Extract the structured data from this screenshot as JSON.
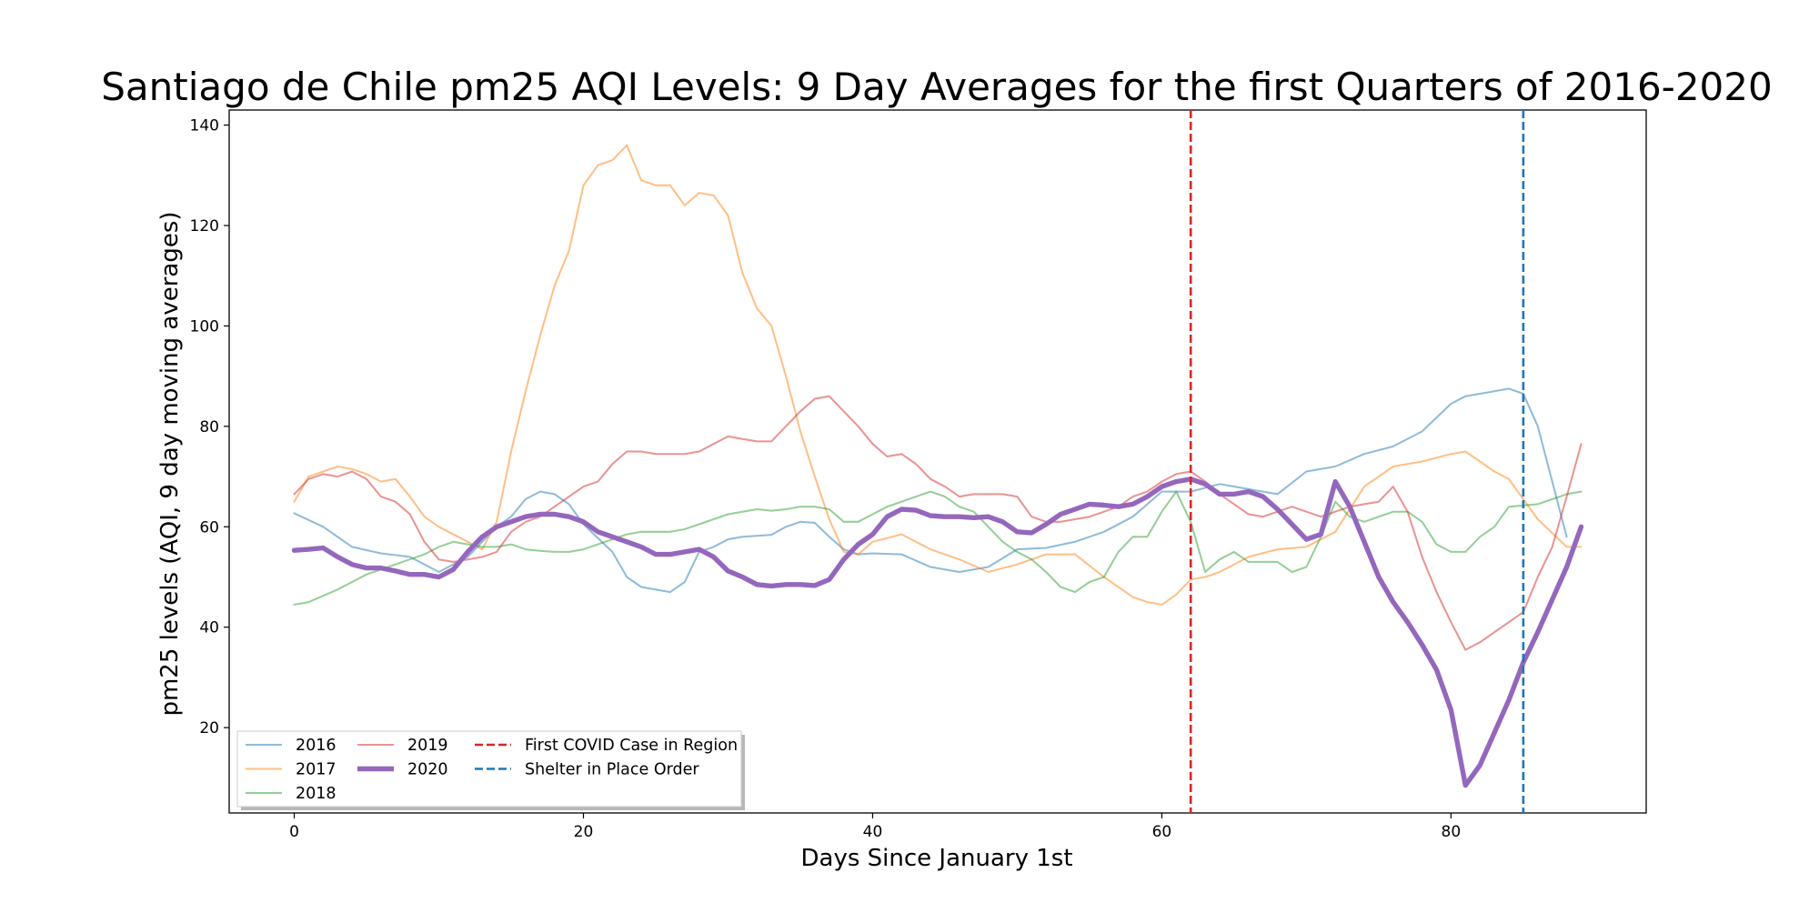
{
  "chart_data": {
    "type": "line",
    "title": "Santiago de Chile pm25 AQI Levels: 9 Day Averages for the first Quarters of 2016-2020",
    "xlabel": "Days Since January 1st",
    "ylabel": "pm25 levels (AQI, 9 day moving averages)",
    "xlim": [
      -4.5,
      93.5
    ],
    "ylim": [
      3,
      143
    ],
    "x_ticks": [
      0,
      20,
      40,
      60,
      80
    ],
    "y_ticks": [
      20,
      40,
      60,
      80,
      100,
      120,
      140
    ],
    "grid": false,
    "legend_position": "lower left",
    "legend_columns": 3,
    "vertical_lines": [
      {
        "label": "First COVID Case in Region",
        "x": 62,
        "color": "#d62728",
        "style": "dashed"
      },
      {
        "label": "Shelter in Place Order",
        "x": 85,
        "color": "#1f77b4",
        "style": "dashed"
      }
    ],
    "series": [
      {
        "name": "2016",
        "color": "#1f77b4",
        "linewidth": 1.5,
        "opacity": 0.5,
        "x": [
          0,
          2,
          4,
          6,
          8,
          10,
          12,
          14,
          15,
          16,
          17,
          18,
          19,
          20,
          22,
          23,
          24,
          26,
          27,
          28,
          29,
          30,
          31,
          32,
          33,
          34,
          35,
          36,
          37,
          38,
          39,
          40,
          42,
          44,
          46,
          48,
          50,
          52,
          54,
          56,
          58,
          60,
          62,
          64,
          66,
          68,
          70,
          72,
          74,
          76,
          78,
          80,
          81,
          82,
          83,
          84,
          85,
          86,
          88
        ],
        "y": [
          62.7,
          60,
          56,
          54.7,
          54,
          51,
          54,
          60,
          62,
          65.5,
          67,
          66.5,
          64.5,
          60.5,
          55,
          50,
          48,
          47,
          49,
          55,
          56,
          57.5,
          58,
          58.2,
          58.4,
          60,
          61,
          60.8,
          58,
          55.5,
          54.5,
          54.7,
          54.5,
          52,
          51,
          52,
          55.5,
          55.8,
          57,
          59,
          62,
          67,
          67,
          68.5,
          67.5,
          66.5,
          71,
          72,
          74.5,
          76,
          79,
          84.5,
          86,
          86.5,
          87,
          87.5,
          86.5,
          80,
          58
        ]
      },
      {
        "name": "2017",
        "color": "#ff7f0e",
        "linewidth": 1.5,
        "opacity": 0.5,
        "x": [
          0,
          1,
          2,
          3,
          4,
          5,
          6,
          7,
          8,
          9,
          10,
          12,
          13,
          14,
          15,
          16,
          17,
          18,
          19,
          20,
          21,
          22,
          23,
          24,
          25,
          26,
          27,
          28,
          29,
          30,
          31,
          32,
          33,
          34,
          35,
          36,
          37,
          38,
          39,
          40,
          42,
          44,
          46,
          48,
          50,
          52,
          54,
          56,
          58,
          59,
          60,
          61,
          62,
          63,
          64,
          66,
          68,
          70,
          72,
          74,
          76,
          78,
          80,
          81,
          82,
          83,
          84,
          86,
          88,
          89
        ],
        "y": [
          65,
          70,
          71,
          72,
          71.5,
          70.5,
          69,
          69.5,
          66,
          62,
          60,
          57,
          55.5,
          61,
          75,
          87,
          98,
          108,
          115,
          128,
          132,
          133,
          136,
          129,
          128,
          128,
          124,
          126.5,
          126,
          122,
          110.5,
          103.5,
          100,
          90,
          79,
          70,
          61.5,
          55,
          54.5,
          57,
          58.5,
          55.5,
          53.5,
          51,
          52.5,
          54.5,
          54.5,
          50,
          46,
          45,
          44.5,
          46.5,
          49.5,
          50,
          51,
          54,
          55.5,
          56,
          59,
          68,
          72,
          73,
          74.5,
          75,
          73,
          71,
          69.5,
          61.5,
          56,
          56
        ]
      },
      {
        "name": "2018",
        "color": "#2ca02c",
        "linewidth": 1.5,
        "opacity": 0.5,
        "x": [
          0,
          1,
          3,
          5,
          7,
          9,
          10,
          11,
          12,
          13,
          14,
          15,
          16,
          17,
          18,
          19,
          20,
          21,
          22,
          23,
          24,
          25,
          26,
          27,
          28,
          29,
          30,
          31,
          32,
          33,
          34,
          35,
          36,
          37,
          38,
          39,
          40,
          41,
          42,
          43,
          44,
          45,
          46,
          47,
          48,
          49,
          50,
          51,
          52,
          53,
          54,
          55,
          56,
          57,
          58,
          59,
          60,
          61,
          62,
          63,
          64,
          65,
          66,
          67,
          68,
          69,
          70,
          71,
          72,
          73,
          74,
          75,
          76,
          77,
          78,
          79,
          80,
          81,
          82,
          83,
          84,
          86,
          88,
          89
        ],
        "y": [
          44.5,
          45,
          47.5,
          50.5,
          52.5,
          54.5,
          56,
          57,
          56.5,
          56,
          56,
          56.5,
          55.5,
          55.2,
          55,
          55,
          55.5,
          56.5,
          57.5,
          58.5,
          59,
          59,
          59,
          59.5,
          60.5,
          61.5,
          62.5,
          63,
          63.5,
          63.2,
          63.5,
          64,
          64,
          63.5,
          61,
          61,
          62.5,
          64,
          65,
          66,
          67,
          66,
          64,
          63,
          60,
          57,
          55,
          53.5,
          51,
          48,
          47,
          49,
          50,
          55,
          58,
          58,
          63,
          67,
          61,
          51,
          53.5,
          55,
          53,
          53,
          53,
          51,
          52,
          58,
          65,
          62,
          61,
          62,
          63,
          63,
          61,
          56.5,
          55,
          55,
          58,
          60,
          64,
          64.5,
          66.5,
          67
        ]
      },
      {
        "name": "2019",
        "color": "#d62728",
        "linewidth": 1.5,
        "opacity": 0.5,
        "x": [
          0,
          1,
          2,
          3,
          4,
          5,
          6,
          7,
          8,
          9,
          10,
          11,
          12,
          13,
          14,
          15,
          16,
          17,
          18,
          19,
          20,
          21,
          22,
          23,
          24,
          25,
          26,
          27,
          28,
          29,
          30,
          31,
          32,
          33,
          34,
          35,
          36,
          37,
          38,
          39,
          40,
          41,
          42,
          43,
          44,
          45,
          46,
          47,
          48,
          49,
          50,
          51,
          52,
          53,
          54,
          55,
          56,
          57,
          58,
          59,
          60,
          61,
          62,
          63,
          64,
          65,
          66,
          67,
          68,
          69,
          70,
          71,
          72,
          73,
          74,
          75,
          76,
          77,
          78,
          79,
          80,
          81,
          82,
          83,
          84,
          85,
          86,
          87,
          88,
          89
        ],
        "y": [
          66.5,
          69.5,
          70.5,
          70,
          71,
          69.5,
          66,
          65,
          62.5,
          57,
          53.5,
          53,
          53.5,
          54,
          55,
          59,
          61,
          62,
          64,
          66,
          68,
          69,
          72.5,
          75,
          75,
          74.5,
          74.5,
          74.5,
          75,
          76.5,
          78,
          77.5,
          77,
          77,
          80,
          83,
          85.5,
          86,
          83,
          80,
          76.5,
          74,
          74.5,
          72.5,
          69.5,
          68,
          66,
          66.5,
          66.5,
          66.5,
          66,
          62,
          61,
          61,
          61.5,
          62,
          63,
          64,
          66,
          67,
          69,
          70.5,
          71,
          69,
          66.5,
          64.5,
          62.5,
          62,
          63,
          64,
          63,
          62,
          63,
          64,
          64.5,
          65,
          68,
          63,
          54,
          47,
          41,
          35.5,
          37,
          39,
          41,
          43,
          50,
          56,
          66,
          76.5
        ]
      },
      {
        "name": "2020",
        "color": "#9467bd",
        "linewidth": 4,
        "opacity": 1,
        "x": [
          0,
          1,
          2,
          3,
          4,
          5,
          6,
          7,
          8,
          9,
          10,
          11,
          12,
          13,
          14,
          15,
          16,
          17,
          18,
          19,
          20,
          21,
          22,
          23,
          24,
          25,
          26,
          27,
          28,
          29,
          30,
          31,
          32,
          33,
          34,
          35,
          36,
          37,
          38,
          39,
          40,
          41,
          42,
          43,
          44,
          45,
          46,
          47,
          48,
          49,
          50,
          51,
          52,
          53,
          54,
          55,
          56,
          57,
          58,
          59,
          60,
          61,
          62,
          63,
          64,
          65,
          66,
          67,
          68,
          69,
          70,
          71,
          72,
          73,
          74,
          75,
          76,
          77,
          78,
          79,
          80,
          81,
          82,
          83,
          84,
          85,
          86,
          87,
          88,
          89
        ],
        "y": [
          55.3,
          55.5,
          55.8,
          54,
          52.5,
          51.8,
          51.8,
          51.2,
          50.5,
          50.5,
          50,
          51.5,
          55,
          58,
          60,
          61,
          62,
          62.5,
          62.5,
          62,
          61,
          59,
          58,
          57,
          56,
          54.5,
          54.5,
          55,
          55.5,
          54,
          51.2,
          50,
          48.5,
          48.2,
          48.5,
          48.5,
          48.3,
          49.5,
          53.5,
          56.5,
          58.5,
          62,
          63.5,
          63.3,
          62.2,
          62,
          62,
          61.8,
          62,
          61,
          59,
          58.8,
          60.5,
          62.5,
          63.5,
          64.5,
          64.3,
          64,
          64.5,
          66,
          68,
          69,
          69.5,
          68.5,
          66.5,
          66.5,
          67,
          66,
          63.5,
          60.5,
          57.5,
          58.5,
          69,
          64,
          57,
          50,
          45,
          41,
          36.5,
          31.5,
          23.5,
          8.5,
          12.5,
          19,
          25.5,
          33,
          39,
          45.5,
          52,
          60
        ]
      }
    ]
  }
}
